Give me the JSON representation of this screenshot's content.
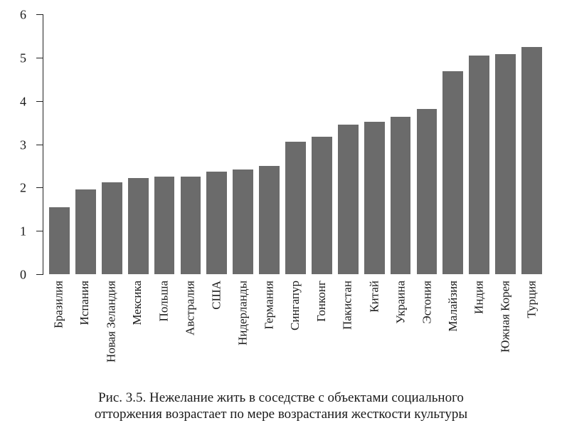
{
  "chart": {
    "type": "bar",
    "ylim": [
      0,
      6
    ],
    "yticks": [
      0,
      1,
      2,
      3,
      4,
      5,
      6
    ],
    "bar_color": "#6b6b6b",
    "background_color": "#ffffff",
    "axis_color": "#222222",
    "tick_color": "#222222",
    "label_color": "#1a1a1a",
    "label_fontsize_pt": 13,
    "caption_fontsize_pt": 14,
    "bar_width": 0.78,
    "categories": [
      "Бразилия",
      "Испания",
      "Новая Зеландия",
      "Мексика",
      "Польша",
      "Австралия",
      "США",
      "Нидерланды",
      "Германия",
      "Сингапур",
      "Гонконг",
      "Пакистан",
      "Китай",
      "Украина",
      "Эстония",
      "Малайзия",
      "Индия",
      "Южная Корея",
      "Турция"
    ],
    "values": [
      1.55,
      1.95,
      2.12,
      2.22,
      2.26,
      2.26,
      2.36,
      2.42,
      2.5,
      3.05,
      3.18,
      3.46,
      3.52,
      3.64,
      3.82,
      4.68,
      5.04,
      5.08,
      5.24
    ]
  },
  "caption": {
    "line1": "Рис. 3.5. Нежелание жить в соседстве с объектами социального",
    "line2": "отторжения возрастает по мере возрастания жесткости культуры"
  }
}
